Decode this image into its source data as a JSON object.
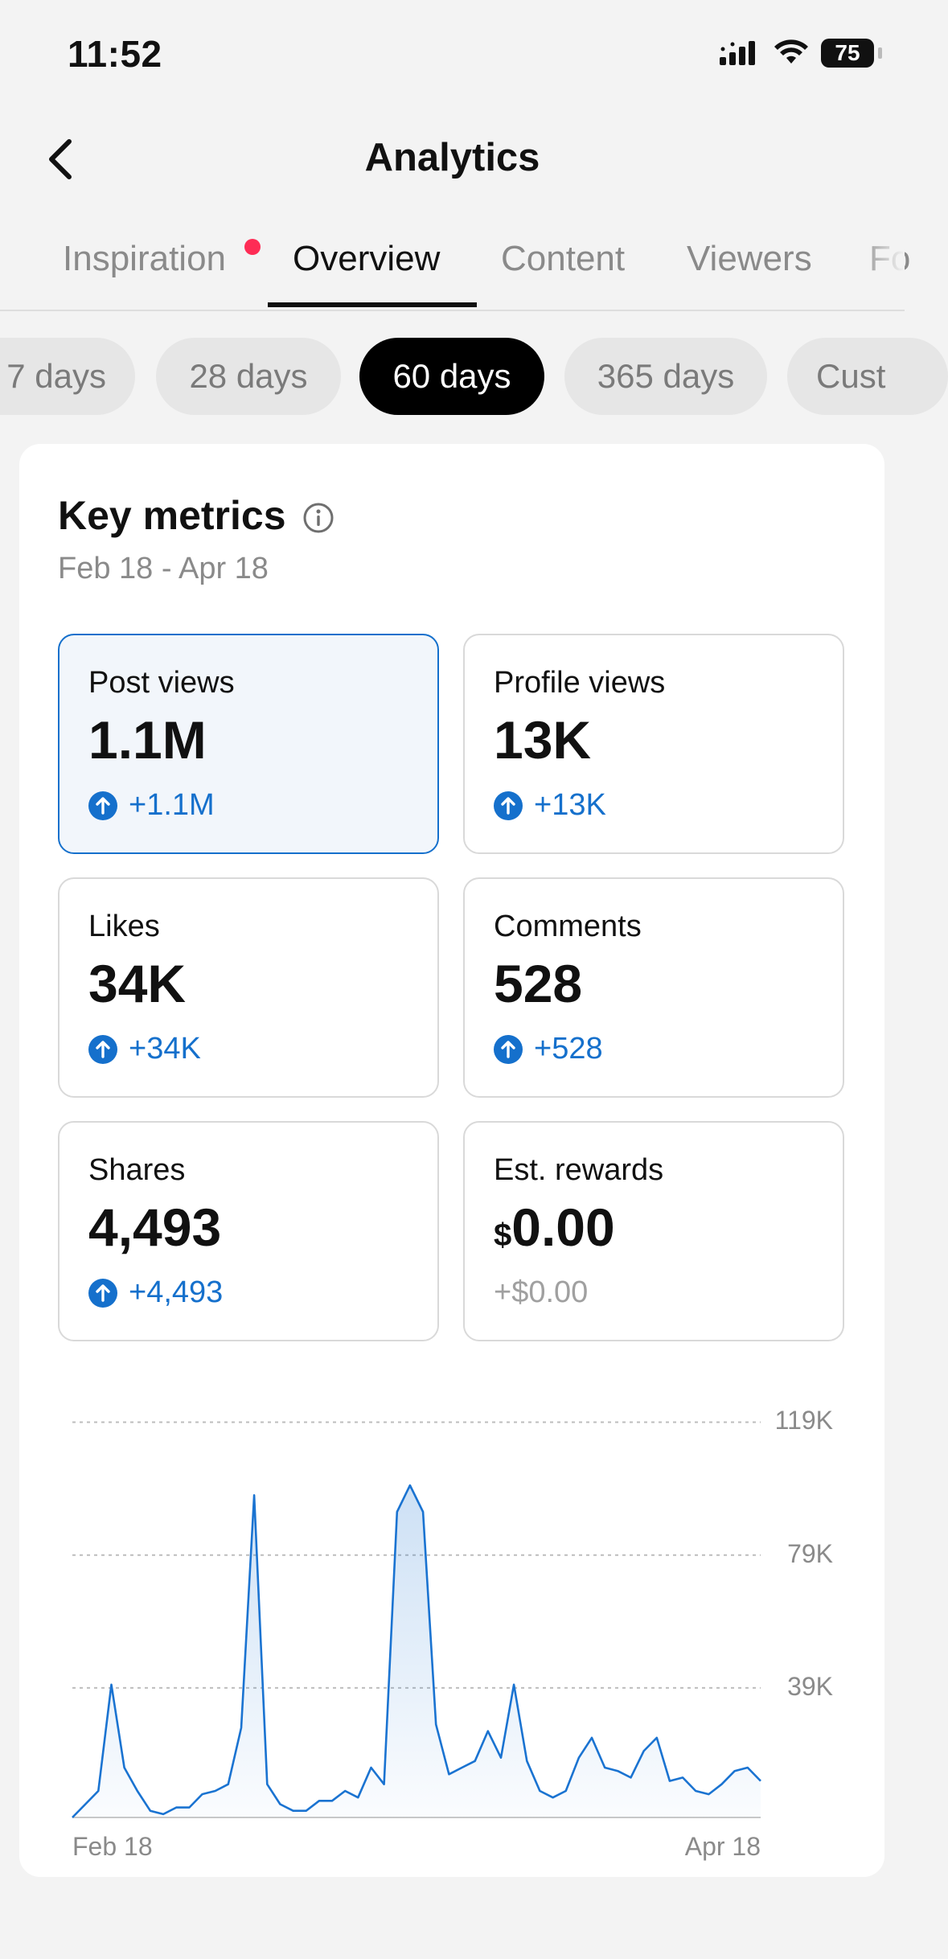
{
  "status": {
    "time": "11:52",
    "battery": "75",
    "icons": [
      "signal-icon",
      "wifi-icon",
      "battery-icon"
    ]
  },
  "header": {
    "title": "Analytics",
    "back_icon": "chevron-left-icon"
  },
  "tabs": [
    {
      "label": "Inspiration",
      "active": false,
      "badge": true
    },
    {
      "label": "Overview",
      "active": true
    },
    {
      "label": "Content",
      "active": false
    },
    {
      "label": "Viewers",
      "active": false
    },
    {
      "label": "Fo",
      "active": false
    }
  ],
  "ranges": [
    {
      "label": "7 days",
      "active": false
    },
    {
      "label": "28 days",
      "active": false
    },
    {
      "label": "60 days",
      "active": true
    },
    {
      "label": "365 days",
      "active": false
    },
    {
      "label": "Cust",
      "active": false
    }
  ],
  "key_metrics": {
    "title": "Key metrics",
    "date_range": "Feb 18 - Apr 18",
    "cards": [
      {
        "label": "Post views",
        "value": "1.1M",
        "delta": "+1.1M",
        "trend": "up",
        "selected": true
      },
      {
        "label": "Profile views",
        "value": "13K",
        "delta": "+13K",
        "trend": "up",
        "selected": false
      },
      {
        "label": "Likes",
        "value": "34K",
        "delta": "+34K",
        "trend": "up",
        "selected": false
      },
      {
        "label": "Comments",
        "value": "528",
        "delta": "+528",
        "trend": "up",
        "selected": false
      },
      {
        "label": "Shares",
        "value": "4,493",
        "delta": "+4,493",
        "trend": "up",
        "selected": false
      },
      {
        "label": "Est. rewards",
        "currency": "$",
        "value": "0.00",
        "delta": "+$0.00",
        "trend": "none",
        "selected": false
      }
    ]
  },
  "colors": {
    "accent": "#1570cc",
    "badge": "#fe2c55",
    "line": "#1a73d1"
  },
  "chart_data": {
    "type": "area",
    "series": [
      {
        "values": [
          0,
          4,
          8,
          40,
          15,
          8,
          2,
          1,
          3,
          3,
          7,
          8,
          10,
          27,
          97,
          10,
          4,
          2,
          2,
          5,
          5,
          8,
          6,
          15,
          10,
          92,
          100,
          92,
          28,
          13,
          15,
          17,
          26,
          18,
          40,
          17,
          8,
          6,
          8,
          18,
          24,
          15,
          14,
          12,
          20,
          24,
          11,
          12,
          8,
          7,
          10,
          14,
          15,
          11
        ]
      }
    ],
    "y_unit_note": "",
    "x_start_label": "Feb 18",
    "x_end_label": "Apr 18",
    "yticks": [
      "119K",
      "79K",
      "39K"
    ],
    "ytick_values": [
      119,
      79,
      39
    ],
    "ylim": [
      0,
      119
    ],
    "grid": true
  }
}
